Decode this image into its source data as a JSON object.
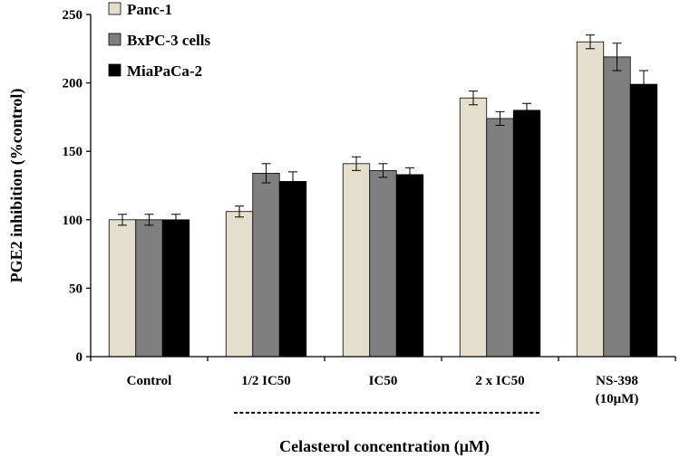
{
  "chart_data": {
    "type": "bar",
    "title": "",
    "ylabel": "PGE2 inhibition (%control)",
    "xlabel": "Celasterol concentration (μM)",
    "ylim": [
      0,
      250
    ],
    "yticks": [
      0,
      50,
      100,
      150,
      200,
      250
    ],
    "categories": [
      {
        "line1": "Control",
        "line2": ""
      },
      {
        "line1": "1/2 IC50",
        "line2": ""
      },
      {
        "line1": "IC50",
        "line2": ""
      },
      {
        "line1": "2 x IC50",
        "line2": ""
      },
      {
        "line1": "NS-398",
        "line2": "(10μM)"
      }
    ],
    "series": [
      {
        "name": "Panc-1",
        "color": "#e3dfcc",
        "values": [
          100,
          106,
          141,
          189,
          230
        ],
        "errors": [
          4,
          4,
          5,
          5,
          5
        ]
      },
      {
        "name": "BxPC-3 cells",
        "color": "#7f7f7f",
        "values": [
          100,
          134,
          136,
          174,
          219
        ],
        "errors": [
          4,
          7,
          5,
          5,
          10
        ]
      },
      {
        "name": "MiaPaCa-2",
        "color": "#000000",
        "values": [
          100,
          128,
          133,
          180,
          199
        ],
        "errors": [
          4,
          7,
          5,
          5,
          10
        ]
      }
    ],
    "legend_position": "top-left",
    "grid": false
  }
}
